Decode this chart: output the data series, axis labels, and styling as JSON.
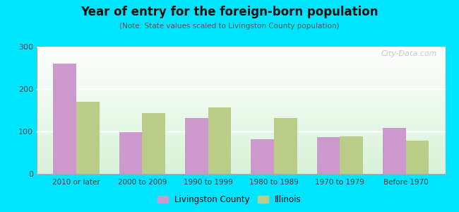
{
  "title": "Year of entry for the foreign-born population",
  "subtitle": "(Note: State values scaled to Livingston County population)",
  "categories": [
    "2010 or later",
    "2000 to 2009",
    "1990 to 1999",
    "1980 to 1989",
    "1970 to 1979",
    "Before 1970"
  ],
  "livingston_values": [
    260,
    99,
    132,
    82,
    87,
    109
  ],
  "illinois_values": [
    170,
    143,
    157,
    131,
    88,
    79
  ],
  "livingston_color": "#cc99cc",
  "illinois_color": "#bbcc88",
  "background_outer": "#00e5ff",
  "ylim": [
    0,
    300
  ],
  "yticks": [
    0,
    100,
    200,
    300
  ],
  "bar_width": 0.35,
  "legend_labels": [
    "Livingston County",
    "Illinois"
  ],
  "watermark": "City-Data.com"
}
